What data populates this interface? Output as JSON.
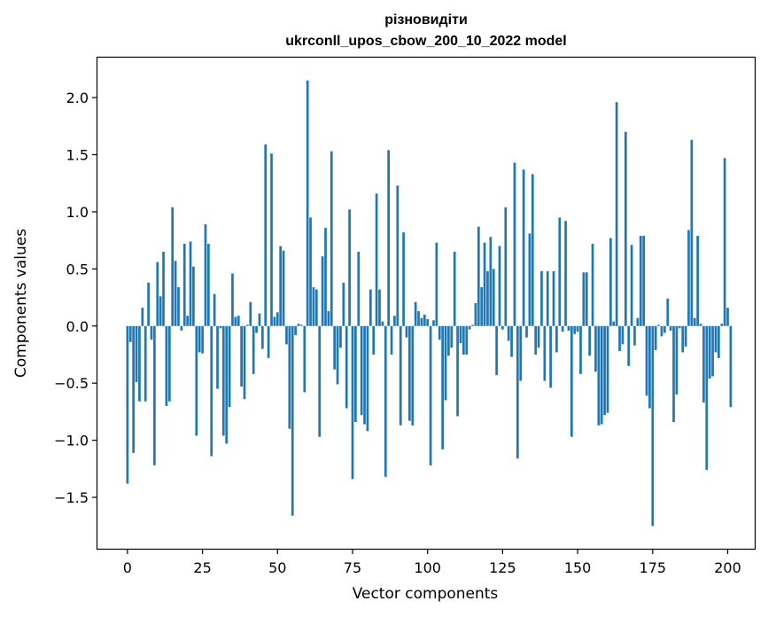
{
  "chart_data": {
    "type": "bar",
    "title_line1": "різновидіти",
    "title_line2": "ukrconll_upos_cbow_200_10_2022 model",
    "xlabel": "Vector components",
    "ylabel": "Components values",
    "xlim": [
      -10,
      209
    ],
    "ylim": [
      -1.95,
      2.35
    ],
    "xticks": [
      0,
      25,
      50,
      75,
      100,
      125,
      150,
      175,
      200
    ],
    "yticks": [
      -1.5,
      -1.0,
      -0.5,
      0.0,
      0.5,
      1.0,
      1.5,
      2.0
    ],
    "ytick_labels": [
      "−1.5",
      "−1.0",
      "−0.5",
      "0.0",
      "0.5",
      "1.0",
      "1.5",
      "2.0"
    ],
    "bar_color": "#1f77b4",
    "grid": false,
    "values": [
      -1.38,
      -0.14,
      -1.11,
      -0.49,
      -0.66,
      0.16,
      -0.66,
      0.38,
      -0.12,
      -1.22,
      0.56,
      0.26,
      0.65,
      -0.7,
      -0.66,
      1.04,
      0.57,
      0.34,
      -0.04,
      0.72,
      0.09,
      0.74,
      0.52,
      -0.96,
      -0.23,
      -0.24,
      0.89,
      0.72,
      -1.14,
      0.28,
      -0.55,
      -0.02,
      -0.96,
      -1.03,
      -0.71,
      0.46,
      0.08,
      0.09,
      -0.53,
      -0.64,
      0.01,
      0.21,
      -0.42,
      -0.06,
      0.11,
      -0.2,
      1.59,
      -0.28,
      1.51,
      0.08,
      0.12,
      0.7,
      0.66,
      -0.16,
      -0.9,
      -1.66,
      -0.08,
      0.02,
      0.01,
      -0.58,
      2.15,
      0.95,
      0.34,
      0.32,
      -0.97,
      0.61,
      0.86,
      0.13,
      1.53,
      -0.38,
      -0.51,
      -0.19,
      0.38,
      -0.72,
      1.02,
      -1.34,
      -0.84,
      0.65,
      -0.78,
      -0.86,
      -0.92,
      0.32,
      -0.25,
      1.16,
      0.32,
      0.04,
      -1.32,
      1.54,
      -0.25,
      0.09,
      1.23,
      -0.87,
      0.82,
      -0.1,
      -0.83,
      -0.87,
      0.21,
      0.13,
      0.07,
      0.1,
      0.06,
      -1.22,
      0.05,
      0.73,
      -0.12,
      -1.08,
      -0.65,
      -0.26,
      -0.19,
      0.65,
      -0.79,
      -0.15,
      -0.25,
      -0.25,
      -0.03,
      0.01,
      0.2,
      0.87,
      0.34,
      0.73,
      0.48,
      0.78,
      0.5,
      -0.43,
      0.7,
      -0.03,
      1.04,
      -0.13,
      -0.27,
      1.43,
      -1.16,
      -0.48,
      1.37,
      -0.1,
      0.81,
      1.33,
      -0.25,
      -0.19,
      0.48,
      -0.48,
      0.48,
      -0.54,
      0.48,
      -0.23,
      0.95,
      -0.05,
      0.92,
      -0.04,
      -0.97,
      -0.07,
      -0.05,
      -0.42,
      0.47,
      0.47,
      -0.26,
      0.72,
      -0.4,
      -0.87,
      -0.86,
      -0.78,
      -0.76,
      0.77,
      0.04,
      1.96,
      -0.22,
      -0.16,
      1.7,
      -0.35,
      0.71,
      -0.17,
      0.07,
      0.79,
      0.79,
      -0.61,
      -0.72,
      -1.75,
      -0.21,
      0.01,
      -0.09,
      -0.06,
      0.24,
      -0.04,
      -0.84,
      -0.6,
      -0.02,
      -0.23,
      -0.18,
      0.84,
      1.63,
      0.07,
      0.79,
      0.02,
      -0.67,
      -1.26,
      -0.46,
      -0.44,
      -0.23,
      -0.28,
      0.02,
      1.47,
      0.16,
      -0.71
    ]
  }
}
